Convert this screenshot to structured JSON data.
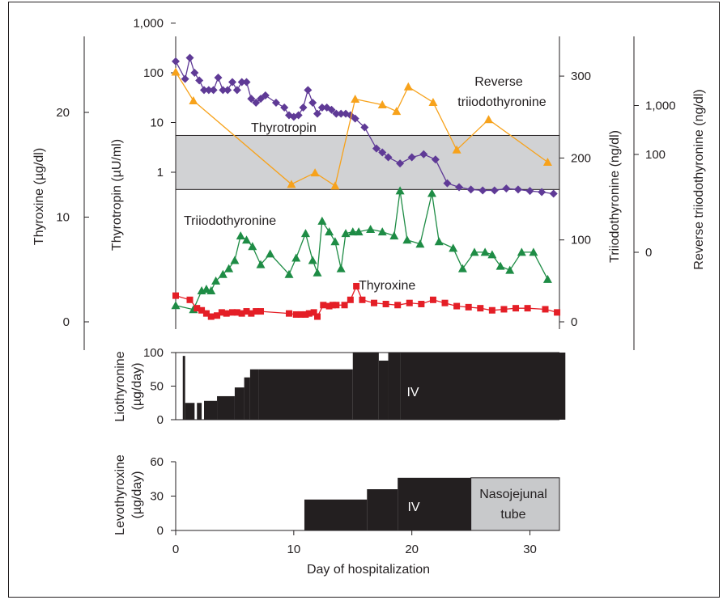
{
  "chart_data": [
    {
      "type": "scatter",
      "xlabel": "",
      "xlim": [
        0,
        32.5
      ],
      "shaded_band": {
        "axis": "thyrotropin",
        "from": 0.45,
        "to": 5.5,
        "label": "Triiodothyronine"
      },
      "axes": {
        "thyroxine": {
          "label": "Thyroxine (µg/dl)",
          "ticks": [
            "0",
            "10",
            "20"
          ],
          "tick_values": [
            0,
            10,
            20
          ],
          "ylim": [
            -1.2,
            27
          ]
        },
        "thyrotropin": {
          "label": "Thyrotropin (µU/ml)",
          "scale": "log",
          "ticks": [
            "1",
            "10",
            "100",
            "1,000"
          ],
          "tick_values": [
            1,
            10,
            100,
            1000
          ],
          "ylim": [
            0.035,
            2000
          ]
        },
        "triiodothyronine": {
          "label": "Triiodothyronine (ng/dl)",
          "ticks": [
            "0",
            "100",
            "200",
            "300"
          ],
          "tick_values": [
            0,
            100,
            200,
            300
          ],
          "ylim": [
            -10,
            360
          ]
        },
        "reverse_triiodothyronine": {
          "label": "Reverse triiodothyronine (ng/dl)",
          "scale": "log",
          "ticks": [
            "0",
            "100",
            "1,000"
          ],
          "tick_values": [
            0,
            100,
            1000
          ]
        }
      },
      "series": [
        {
          "name": "Thyrotropin",
          "axis": "thyrotropin",
          "marker": "diamond",
          "color": "#5f3a96",
          "points": [
            [
              0,
              170
            ],
            [
              0.8,
              75
            ],
            [
              1.2,
              200
            ],
            [
              1.6,
              100
            ],
            [
              2,
              70
            ],
            [
              2.4,
              45
            ],
            [
              2.8,
              45
            ],
            [
              3.2,
              45
            ],
            [
              3.6,
              80
            ],
            [
              4,
              45
            ],
            [
              4.4,
              45
            ],
            [
              4.8,
              65
            ],
            [
              5.2,
              45
            ],
            [
              5.6,
              65
            ],
            [
              6,
              65
            ],
            [
              6.4,
              30
            ],
            [
              6.8,
              25
            ],
            [
              7.2,
              30
            ],
            [
              7.6,
              35
            ],
            [
              8.5,
              25
            ],
            [
              9.2,
              20
            ],
            [
              9.6,
              14
            ],
            [
              10,
              13
            ],
            [
              10.4,
              14
            ],
            [
              10.8,
              20
            ],
            [
              11.2,
              45
            ],
            [
              11.6,
              25
            ],
            [
              12,
              15
            ],
            [
              12.4,
              20
            ],
            [
              12.8,
              20
            ],
            [
              13.2,
              18
            ],
            [
              13.6,
              15
            ],
            [
              14,
              15
            ],
            [
              14.4,
              15
            ],
            [
              14.8,
              14
            ],
            [
              15.2,
              12
            ],
            [
              16,
              8
            ],
            [
              17,
              3
            ],
            [
              17.5,
              2.5
            ],
            [
              18,
              2
            ],
            [
              19,
              1.5
            ],
            [
              20,
              2
            ],
            [
              21,
              2.3
            ],
            [
              22,
              1.8
            ],
            [
              23,
              0.6
            ],
            [
              24,
              0.5
            ],
            [
              25,
              0.45
            ],
            [
              26,
              0.43
            ],
            [
              27,
              0.43
            ],
            [
              28,
              0.47
            ],
            [
              29,
              0.45
            ],
            [
              30,
              0.42
            ],
            [
              31,
              0.4
            ],
            [
              32,
              0.37
            ]
          ]
        },
        {
          "name": "Reverse triiodothyronine",
          "axis": "triiodothyronine",
          "marker": "triangle",
          "color": "#f7a21b",
          "points": [
            [
              0,
              305
            ],
            [
              1.5,
              270
            ],
            [
              9.8,
              168
            ],
            [
              11.8,
              182
            ],
            [
              13.5,
              166
            ],
            [
              15.2,
              272
            ],
            [
              17.5,
              265
            ],
            [
              18.7,
              257
            ],
            [
              19.7,
              287
            ],
            [
              21.8,
              268
            ],
            [
              23.8,
              210
            ],
            [
              26.5,
              247
            ],
            [
              31.5,
              195
            ]
          ]
        },
        {
          "name": "Triiodothyronine",
          "axis": "triiodothyronine",
          "marker": "triangle",
          "color": "#1e8c45",
          "points": [
            [
              0,
              20
            ],
            [
              1.5,
              15
            ],
            [
              2.2,
              38
            ],
            [
              2.6,
              40
            ],
            [
              3,
              38
            ],
            [
              3.4,
              50
            ],
            [
              4,
              58
            ],
            [
              4.5,
              65
            ],
            [
              5,
              75
            ],
            [
              5.5,
              105
            ],
            [
              6,
              100
            ],
            [
              6.5,
              92
            ],
            [
              7.2,
              70
            ],
            [
              8,
              83
            ],
            [
              9.6,
              58
            ],
            [
              10.2,
              78
            ],
            [
              11,
              108
            ],
            [
              11.6,
              75
            ],
            [
              12,
              60
            ],
            [
              12.4,
              123
            ],
            [
              13,
              110
            ],
            [
              13.5,
              98
            ],
            [
              14,
              65
            ],
            [
              14.4,
              108
            ],
            [
              15,
              110
            ],
            [
              15.5,
              110
            ],
            [
              16.5,
              113
            ],
            [
              17.5,
              110
            ],
            [
              18.5,
              105
            ],
            [
              19,
              160
            ],
            [
              19.6,
              100
            ],
            [
              20.7,
              95
            ],
            [
              21.7,
              157
            ],
            [
              22.3,
              98
            ],
            [
              23.5,
              90
            ],
            [
              24.3,
              65
            ],
            [
              25.3,
              85
            ],
            [
              26.2,
              85
            ],
            [
              26.8,
              82
            ],
            [
              27.5,
              68
            ],
            [
              28.3,
              63
            ],
            [
              29.3,
              85
            ],
            [
              30.3,
              85
            ],
            [
              31.5,
              52
            ]
          ]
        },
        {
          "name": "Thyroxine",
          "axis": "thyroxine",
          "marker": "square",
          "color": "#e41e26",
          "points": [
            [
              0,
              2.5
            ],
            [
              1.2,
              2.1
            ],
            [
              1.8,
              1.3
            ],
            [
              2.2,
              1.1
            ],
            [
              2.6,
              0.8
            ],
            [
              3,
              0.5
            ],
            [
              3.5,
              0.6
            ],
            [
              3.9,
              0.9
            ],
            [
              4.3,
              0.8
            ],
            [
              4.8,
              0.9
            ],
            [
              5.2,
              0.9
            ],
            [
              5.6,
              0.8
            ],
            [
              6,
              1
            ],
            [
              6.4,
              0.8
            ],
            [
              6.8,
              1
            ],
            [
              7.2,
              1
            ],
            [
              9.6,
              0.8
            ],
            [
              10.2,
              0.7
            ],
            [
              10.6,
              0.7
            ],
            [
              11,
              0.7
            ],
            [
              11.3,
              0.8
            ],
            [
              11.7,
              0.9
            ],
            [
              12,
              0.5
            ],
            [
              12.5,
              1.6
            ],
            [
              13,
              1.5
            ],
            [
              13.3,
              1.6
            ],
            [
              13.6,
              1.6
            ],
            [
              14.3,
              1.6
            ],
            [
              14.8,
              2.1
            ],
            [
              15.3,
              3.4
            ],
            [
              15.8,
              2.1
            ],
            [
              16.8,
              1.8
            ],
            [
              17.8,
              1.7
            ],
            [
              18.8,
              1.6
            ],
            [
              19.8,
              1.8
            ],
            [
              20.8,
              1.7
            ],
            [
              21.8,
              2.1
            ],
            [
              22.8,
              1.8
            ],
            [
              23.8,
              1.5
            ],
            [
              24.8,
              1.4
            ],
            [
              25.8,
              1.3
            ],
            [
              26.8,
              1.1
            ],
            [
              27.8,
              1.2
            ],
            [
              28.8,
              1.3
            ],
            [
              29.8,
              1.3
            ],
            [
              31.3,
              1.2
            ],
            [
              32.3,
              0.9
            ]
          ]
        }
      ],
      "annotations": [
        "Thyrotropin",
        "Reverse",
        "triiodothyronine",
        "Thyroxine"
      ]
    },
    {
      "type": "area",
      "ylabel": [
        "Liothyronine",
        "(µg/day)"
      ],
      "ylim": [
        0,
        100
      ],
      "yticks": [
        "0",
        "50",
        "100"
      ],
      "ytick_values": [
        0,
        50,
        100
      ],
      "segments": [
        [
          0.6,
          0.8,
          95
        ],
        [
          0.8,
          1.6,
          25
        ],
        [
          1.6,
          1.8,
          0
        ],
        [
          1.8,
          2.2,
          25
        ],
        [
          2.2,
          2.4,
          0
        ],
        [
          2.4,
          3.5,
          28
        ],
        [
          3.5,
          5,
          35
        ],
        [
          5,
          5.8,
          48
        ],
        [
          5.8,
          6.3,
          63
        ],
        [
          6.3,
          7,
          75
        ],
        [
          7,
          15,
          75
        ],
        [
          15,
          17.2,
          100
        ],
        [
          17.2,
          18,
          88
        ],
        [
          18,
          19,
          100
        ],
        [
          19,
          33,
          100
        ]
      ],
      "label": "IV",
      "color": "#231f20"
    },
    {
      "type": "area",
      "ylabel": [
        "Levothyroxine",
        "(µg/day)"
      ],
      "xlabel": "Day of hospitalization",
      "xlim": [
        0,
        32.5
      ],
      "xticks": [
        "0",
        "10",
        "20",
        "30"
      ],
      "xtick_values": [
        0,
        10,
        20,
        30
      ],
      "ylim": [
        0,
        60
      ],
      "yticks": [
        "0",
        "30",
        "60"
      ],
      "ytick_values": [
        0,
        30,
        60
      ],
      "segments": [
        {
          "from": 10.9,
          "to": 16.2,
          "value": 27,
          "route": "IV"
        },
        {
          "from": 16.2,
          "to": 18.8,
          "value": 36,
          "route": "IV"
        },
        {
          "from": 18.8,
          "to": 25.0,
          "value": 46,
          "route": "IV"
        },
        {
          "from": 25.0,
          "to": 32.5,
          "value": 46,
          "route": "Nasojejunal tube"
        }
      ],
      "labels": {
        "iv": "IV",
        "tube_line1": "Nasojejunal",
        "tube_line2": "tube"
      },
      "colors": {
        "iv": "#231f20",
        "tube": "#c8c9cb"
      }
    }
  ]
}
